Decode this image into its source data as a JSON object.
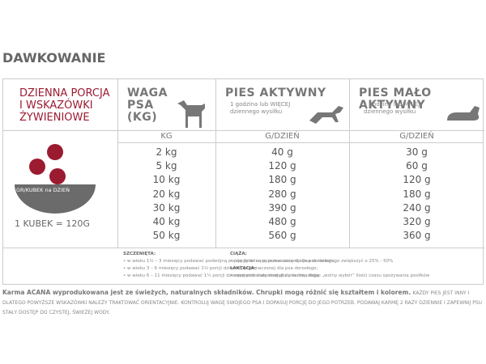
{
  "title": "DAWKOWANIE",
  "side": {
    "heading_lines": [
      "DZIENNA PORCJA",
      "I WSKAZÓWKI",
      "ŻYWIENIOWE"
    ],
    "bowl_label": "GR/KUBEK na DZIEŃ",
    "cup": "1 KUBEK = 120G"
  },
  "table": {
    "headers": [
      {
        "title": "WAGA PSA (KG)"
      },
      {
        "title": "PIES AKTYWNY",
        "sub": "1 godzina lub WIĘCEJ dziennego wysiłku"
      },
      {
        "title": "PIES MAŁO AKTYWNY",
        "sub": "1 godzina lub MNIEJ dziennego wysiłku"
      }
    ],
    "units": [
      "KG",
      "G/DZIEŃ",
      "G/DZIEŃ"
    ],
    "rows": [
      [
        "2 kg",
        "40 g",
        "30 g"
      ],
      [
        "5 kg",
        "120 g",
        "60 g"
      ],
      [
        "10 kg",
        "180 g",
        "120 g"
      ],
      [
        "20 kg",
        "280 g",
        "180 g"
      ],
      [
        "30 kg",
        "390 g",
        "240 g"
      ],
      [
        "40 kg",
        "480 g",
        "320 g"
      ],
      [
        "50 kg",
        "560 g",
        "360 g"
      ]
    ]
  },
  "notes": {
    "left": [
      "SZCZENIĘTA:",
      "• w wieku 1½ – 3 miesięcy podawać podwójną porcję dzienną przeznaczoną dla psa dorosłego;",
      "• w wieku 3 – 6 miesięcy podawać 1½ porcji dziennej przeznaczonej dla psa dorosłego;",
      "• w wieku 6 – 11 miesięcy podawać 1¼ porcji dziennej przeznaczonej dla psa dorosłego."
    ],
    "right": [
      "CIĄŻA:",
      "• porcję dzienną przeznaczoną dla psa dorosłego zwiększyć o 25% - 50%",
      "LAKTACJA:",
      "• zapewnić stały dostęp do karmy, dając „wolny wybór” ilości czasu spożywania posiłków"
    ]
  },
  "footer": {
    "lead": "Karma ACANA wyprodukowana jest ze świeżych, naturalnych składników. Chrupki mogą różnić się kształtem i kolorem.",
    "rest": "KAŻDY PIES JEST INNY I DLATEGO POWYŻSZE WSKAZÓWKI NALEŻY TRAKTOWAĆ ORIENTACYJNIE. KONTROLUJ WAGĘ SWOJEGO PSA I DOPASUJ PORCJĘ DO JEGO POTRZEB. PODAWAJ KARMĘ 2 RAZY DZIENNIE I ZAPEWNIJ PSU STAŁY DOSTĘP DO CZYSTEJ, ŚWIEŻEJ WODY."
  }
}
